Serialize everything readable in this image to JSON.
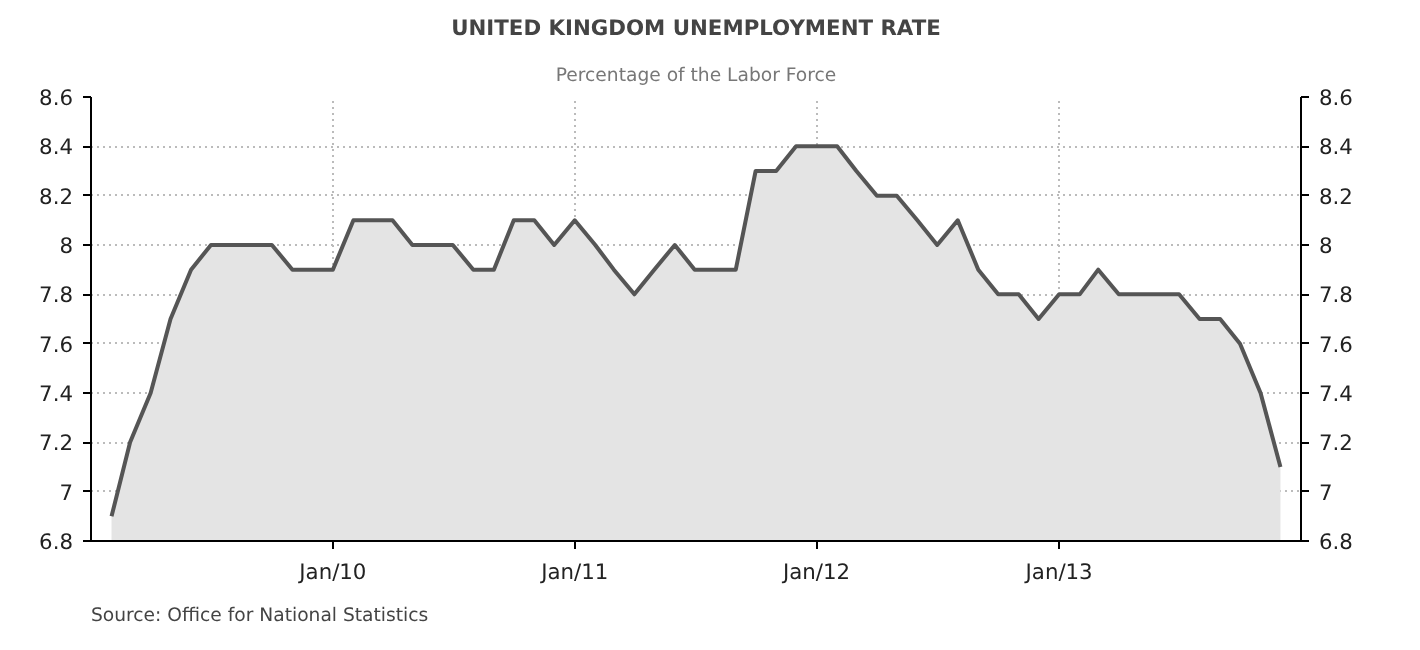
{
  "chart_data": {
    "type": "area",
    "title": "UNITED KINGDOM UNEMPLOYMENT RATE",
    "subtitle": "Percentage of the Labor Force",
    "annotations": [
      "Source: Office for National Statistics"
    ],
    "x": [
      "2009-02",
      "2009-03",
      "2009-04",
      "2009-05",
      "2009-06",
      "2009-07",
      "2009-08",
      "2009-09",
      "2009-10",
      "2009-11",
      "2009-12",
      "2010-01",
      "2010-02",
      "2010-03",
      "2010-04",
      "2010-05",
      "2010-06",
      "2010-07",
      "2010-08",
      "2010-09",
      "2010-10",
      "2010-11",
      "2010-12",
      "2011-01",
      "2011-02",
      "2011-03",
      "2011-04",
      "2011-05",
      "2011-06",
      "2011-07",
      "2011-08",
      "2011-09",
      "2011-10",
      "2011-11",
      "2011-12",
      "2012-01",
      "2012-02",
      "2012-03",
      "2012-04",
      "2012-05",
      "2012-06",
      "2012-07",
      "2012-08",
      "2012-09",
      "2012-10",
      "2012-11",
      "2012-12",
      "2013-01",
      "2013-02",
      "2013-03",
      "2013-04",
      "2013-05",
      "2013-06",
      "2013-07",
      "2013-08",
      "2013-09",
      "2013-10",
      "2013-11",
      "2013-12"
    ],
    "series": [
      {
        "color": "#555555",
        "values": [
          6.9,
          7.2,
          7.4,
          7.7,
          7.9,
          8.0,
          8.0,
          8.0,
          8.0,
          7.9,
          7.9,
          7.9,
          8.1,
          8.1,
          8.1,
          8.0,
          8.0,
          8.0,
          7.9,
          7.9,
          8.1,
          8.1,
          8.0,
          8.1,
          8.0,
          7.9,
          7.8,
          7.9,
          8.0,
          7.9,
          7.9,
          7.9,
          8.3,
          8.3,
          8.4,
          8.4,
          8.4,
          8.3,
          8.2,
          8.2,
          8.1,
          8.0,
          8.1,
          7.9,
          7.8,
          7.8,
          7.7,
          7.8,
          7.8,
          7.9,
          7.8,
          7.8,
          7.8,
          7.8,
          7.7,
          7.7,
          7.6,
          7.4,
          7.1
        ]
      }
    ],
    "xlim": [
      "2009-01",
      "2014-01"
    ],
    "xticks": [
      {
        "value": "2010-01",
        "label": "Jan/10"
      },
      {
        "value": "2011-01",
        "label": "Jan/11"
      },
      {
        "value": "2012-01",
        "label": "Jan/12"
      },
      {
        "value": "2013-01",
        "label": "Jan/13"
      }
    ],
    "ylim": [
      6.8,
      8.6
    ],
    "yticks": [
      6.8,
      7,
      7.2,
      7.4,
      7.6,
      7.8,
      8,
      8.2,
      8.4,
      8.6
    ],
    "y2lim": [
      6.8,
      8.6
    ],
    "y2ticks": [
      6.8,
      7,
      7.2,
      7.4,
      7.6,
      7.8,
      8,
      8.2,
      8.4,
      8.6
    ],
    "grid": true
  }
}
